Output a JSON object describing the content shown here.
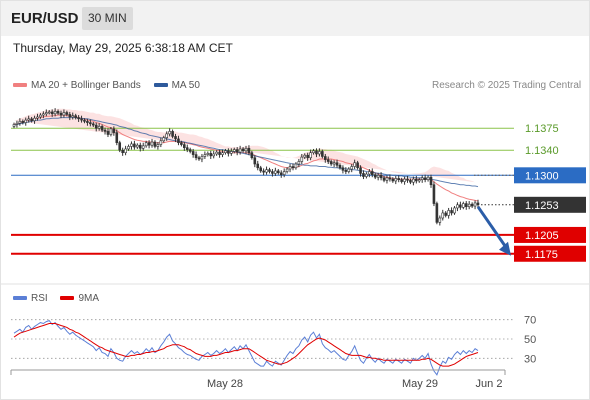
{
  "header": {
    "pair": "EUR/USD",
    "timeframe": "30 MIN",
    "datetime": "Thursday, May 29, 2025 6:38:18 AM CET"
  },
  "legend": {
    "main": [
      {
        "name": "MA 20 + Bollinger Bands",
        "color": "#f08080"
      },
      {
        "name": "MA 50",
        "color": "#2e5a9c"
      }
    ],
    "rsi": [
      {
        "name": "RSI",
        "color": "#5b7fd6"
      },
      {
        "name": "9MA",
        "color": "#e00000"
      }
    ]
  },
  "credit": "Research © 2025 Trading Central",
  "chart_data": [
    {
      "type": "candlestick",
      "ylim": [
        1.113,
        1.142
      ],
      "x_ticks": [
        "May 28",
        "May 29",
        "Jun 2"
      ],
      "current_price": "1.1253",
      "levels": [
        {
          "label": "1.1375",
          "value": 1.1375,
          "kind": "resistance",
          "color": "#8bc34a"
        },
        {
          "label": "1.1340",
          "value": 1.134,
          "kind": "resistance",
          "color": "#8bc34a"
        },
        {
          "label": "1.1300",
          "value": 1.13,
          "kind": "pivot",
          "color": "#2b6cc4"
        },
        {
          "label": "1.1205",
          "value": 1.1205,
          "kind": "support",
          "color": "#e00000"
        },
        {
          "label": "1.1175",
          "value": 1.1175,
          "kind": "support",
          "color": "#e00000"
        }
      ],
      "close": [
        1.1381,
        1.1383,
        1.1386,
        1.1384,
        1.1388,
        1.139,
        1.1387,
        1.1391,
        1.1393,
        1.1396,
        1.1398,
        1.14,
        1.1401,
        1.1398,
        1.1402,
        1.1399,
        1.1396,
        1.14,
        1.1397,
        1.1393,
        1.1395,
        1.1392,
        1.139,
        1.1388,
        1.1386,
        1.1384,
        1.1382,
        1.138,
        1.1375,
        1.1378,
        1.1372,
        1.137,
        1.1365,
        1.1374,
        1.1368,
        1.1352,
        1.134,
        1.1336,
        1.1342,
        1.1346,
        1.135,
        1.1345,
        1.1348,
        1.1343,
        1.1347,
        1.1352,
        1.1348,
        1.1353,
        1.1346,
        1.1349,
        1.1355,
        1.136,
        1.1366,
        1.137,
        1.1362,
        1.1358,
        1.1352,
        1.1349,
        1.1344,
        1.1341,
        1.1338,
        1.1333,
        1.1328,
        1.1326,
        1.133,
        1.1333,
        1.1335,
        1.1331,
        1.1334,
        1.1337,
        1.1333,
        1.1336,
        1.1339,
        1.1335,
        1.1338,
        1.1341,
        1.1337,
        1.1342,
        1.1339,
        1.1343,
        1.1336,
        1.1328,
        1.1318,
        1.1312,
        1.1307,
        1.1305,
        1.1309,
        1.1306,
        1.1303,
        1.1307,
        1.1304,
        1.1301,
        1.1306,
        1.131,
        1.1314,
        1.1312,
        1.1318,
        1.1322,
        1.1329,
        1.1332,
        1.1328,
        1.1336,
        1.1339,
        1.1334,
        1.1338,
        1.133,
        1.1325,
        1.1322,
        1.1318,
        1.132,
        1.1316,
        1.1312,
        1.1308,
        1.1306,
        1.131,
        1.1314,
        1.132,
        1.1312,
        1.1303,
        1.1298,
        1.1302,
        1.1306,
        1.1301,
        1.1297,
        1.13,
        1.1296,
        1.1292,
        1.1296,
        1.1294,
        1.1291,
        1.1295,
        1.1293,
        1.129,
        1.1294,
        1.1292,
        1.1289,
        1.1294,
        1.1291,
        1.1293,
        1.1296,
        1.1293,
        1.1297,
        1.1285,
        1.1255,
        1.1225,
        1.1232,
        1.124,
        1.1236,
        1.1244,
        1.124,
        1.1248,
        1.1253,
        1.1249,
        1.1255,
        1.125,
        1.1254,
        1.1251,
        1.1256,
        1.1253
      ],
      "ma20": [
        1.1381,
        1.1382,
        1.1384,
        1.1385,
        1.1387,
        1.1388,
        1.1389,
        1.139,
        1.1391,
        1.1392,
        1.1393,
        1.1394,
        1.1394,
        1.1395,
        1.1395,
        1.1396,
        1.1396,
        1.1396,
        1.1395,
        1.1395,
        1.1394,
        1.1393,
        1.1392,
        1.1391,
        1.139,
        1.1388,
        1.1387,
        1.1386,
        1.1384,
        1.1383,
        1.1381,
        1.1379,
        1.1377,
        1.1376,
        1.1374,
        1.1371,
        1.1368,
        1.1365,
        1.1363,
        1.1361,
        1.1359,
        1.1357,
        1.1356,
        1.1355,
        1.1354,
        1.1354,
        1.1353,
        1.1353,
        1.1352,
        1.1352,
        1.1352,
        1.1352,
        1.1353,
        1.1354,
        1.1354,
        1.1354,
        1.1353,
        1.1353,
        1.1352,
        1.1351,
        1.135,
        1.1349,
        1.1348,
        1.1346,
        1.1345,
        1.1344,
        1.1343,
        1.1342,
        1.1341,
        1.134,
        1.1339,
        1.1338,
        1.1337,
        1.1337,
        1.1336,
        1.1336,
        1.1336,
        1.1336,
        1.1336,
        1.1336,
        1.1335,
        1.1334,
        1.1332,
        1.133,
        1.1328,
        1.1326,
        1.1324,
        1.1322,
        1.132,
        1.1318,
        1.1316,
        1.1314,
        1.1313,
        1.1312,
        1.1312,
        1.1312,
        1.1313,
        1.1314,
        1.1316,
        1.1318,
        1.1319,
        1.1321,
        1.1323,
        1.1324,
        1.1326,
        1.1326,
        1.1326,
        1.1326,
        1.1326,
        1.1325,
        1.1324,
        1.1323,
        1.1322,
        1.132,
        1.1319,
        1.1318,
        1.1317,
        1.1316,
        1.1314,
        1.1312,
        1.131,
        1.1308,
        1.1306,
        1.1304,
        1.1302,
        1.13,
        1.1298,
        1.1297,
        1.1296,
        1.1295,
        1.1294,
        1.1294,
        1.1294,
        1.1294,
        1.1294,
        1.1294,
        1.1294,
        1.1294,
        1.1294,
        1.1294,
        1.1294,
        1.1294,
        1.1293,
        1.129,
        1.1286,
        1.1283,
        1.128,
        1.1277,
        1.1275,
        1.1272,
        1.127,
        1.1268,
        1.1266,
        1.1265,
        1.1263,
        1.1262,
        1.1261,
        1.126,
        1.1259
      ],
      "bb_width": [
        0.0006,
        0.0006,
        0.0007,
        0.0007,
        0.0007,
        0.0008,
        0.0008,
        0.0008,
        0.0009,
        0.0009,
        0.0009,
        0.001,
        0.001,
        0.001,
        0.001,
        0.001,
        0.001,
        0.001,
        0.001,
        0.001,
        0.001,
        0.0011,
        0.0011,
        0.0012,
        0.0012,
        0.0013,
        0.0013,
        0.0014,
        0.0014,
        0.0015,
        0.0015,
        0.0016,
        0.0017,
        0.0018,
        0.0019,
        0.0021,
        0.0023,
        0.0024,
        0.0024,
        0.0024,
        0.0024,
        0.0023,
        0.0023,
        0.0022,
        0.0022,
        0.0021,
        0.002,
        0.0019,
        0.0018,
        0.0017,
        0.0017,
        0.0016,
        0.0016,
        0.0016,
        0.0016,
        0.0016,
        0.0015,
        0.0015,
        0.0015,
        0.0015,
        0.0015,
        0.0016,
        0.0016,
        0.0016,
        0.0016,
        0.0015,
        0.0015,
        0.0014,
        0.0013,
        0.0012,
        0.0011,
        0.001,
        0.0009,
        0.0009,
        0.0009,
        0.0009,
        0.0009,
        0.0009,
        0.0009,
        0.001,
        0.0011,
        0.0013,
        0.0015,
        0.0017,
        0.0018,
        0.0019,
        0.0019,
        0.0019,
        0.0019,
        0.0018,
        0.0018,
        0.0017,
        0.0017,
        0.0016,
        0.0016,
        0.0016,
        0.0016,
        0.0017,
        0.0017,
        0.0018,
        0.0018,
        0.0018,
        0.0018,
        0.0017,
        0.0017,
        0.0016,
        0.0016,
        0.0015,
        0.0015,
        0.0014,
        0.0014,
        0.0014,
        0.0014,
        0.0014,
        0.0014,
        0.0014,
        0.0014,
        0.0014,
        0.0014,
        0.0014,
        0.0014,
        0.0014,
        0.0013,
        0.0013,
        0.0012,
        0.0012,
        0.0012,
        0.0011,
        0.0011,
        0.001,
        0.001,
        0.0009,
        0.0009,
        0.0009,
        0.0009,
        0.0009,
        0.0009,
        0.0009,
        0.0009,
        0.001,
        0.0011,
        0.0014,
        0.0019,
        0.0024,
        0.0027,
        0.0029,
        0.003,
        0.0031,
        0.0032,
        0.0032,
        0.0032,
        0.0032,
        0.0031,
        0.0031,
        0.003,
        0.003,
        0.003,
        0.0029
      ],
      "ma50": [
        1.138,
        1.1381,
        1.1382,
        1.1383,
        1.1384,
        1.1385,
        1.1386,
        1.1387,
        1.1388,
        1.1388,
        1.1389,
        1.139,
        1.139,
        1.1391,
        1.1391,
        1.1391,
        1.1392,
        1.1392,
        1.1392,
        1.1392,
        1.1392,
        1.1392,
        1.1391,
        1.1391,
        1.139,
        1.139,
        1.1389,
        1.1388,
        1.1387,
        1.1386,
        1.1385,
        1.1384,
        1.1383,
        1.1382,
        1.1381,
        1.138,
        1.1378,
        1.1377,
        1.1376,
        1.1374,
        1.1373,
        1.1371,
        1.137,
        1.1368,
        1.1367,
        1.1366,
        1.1364,
        1.1363,
        1.1362,
        1.1361,
        1.136,
        1.1359,
        1.1358,
        1.1357,
        1.1356,
        1.1355,
        1.1354,
        1.1354,
        1.1353,
        1.1352,
        1.1351,
        1.135,
        1.1349,
        1.1348,
        1.1347,
        1.1346,
        1.1345,
        1.1344,
        1.1343,
        1.1342,
        1.1341,
        1.1341,
        1.134,
        1.1339,
        1.1338,
        1.1338,
        1.1337,
        1.1336,
        1.1335,
        1.1334,
        1.1333,
        1.1332,
        1.1331,
        1.133,
        1.1329,
        1.1328,
        1.1327,
        1.1326,
        1.1325,
        1.1324,
        1.1323,
        1.1322,
        1.1321,
        1.132,
        1.1319,
        1.1318,
        1.1318,
        1.1317,
        1.1317,
        1.1316,
        1.1316,
        1.1315,
        1.1315,
        1.1315,
        1.1314,
        1.1314,
        1.1314,
        1.1313,
        1.1313,
        1.1312,
        1.1312,
        1.1311,
        1.1311,
        1.131,
        1.131,
        1.1309,
        1.1309,
        1.1308,
        1.1307,
        1.1307,
        1.1306,
        1.1305,
        1.1305,
        1.1304,
        1.1303,
        1.1303,
        1.1302,
        1.1301,
        1.1301,
        1.13,
        1.13,
        1.1299,
        1.1299,
        1.1298,
        1.1298,
        1.1297,
        1.1297,
        1.1296,
        1.1296,
        1.1296,
        1.1295,
        1.1295,
        1.1294,
        1.1293,
        1.1292,
        1.1291,
        1.129,
        1.1289,
        1.1288,
        1.1287,
        1.1287,
        1.1286,
        1.1285,
        1.1285,
        1.1284,
        1.1284,
        1.1283,
        1.1283,
        1.1282,
        1.1282
      ]
    },
    {
      "type": "line",
      "ylim": [
        20,
        80
      ],
      "y_ticks": [
        30,
        50,
        70
      ],
      "rsi": [
        56,
        58,
        60,
        57,
        62,
        64,
        60,
        63,
        65,
        67,
        66,
        68,
        69,
        65,
        67,
        63,
        60,
        62,
        58,
        55,
        57,
        54,
        52,
        50,
        48,
        46,
        44,
        42,
        38,
        41,
        36,
        35,
        32,
        40,
        36,
        30,
        28,
        27,
        32,
        35,
        38,
        35,
        37,
        34,
        36,
        40,
        37,
        41,
        36,
        38,
        43,
        47,
        52,
        55,
        48,
        45,
        41,
        39,
        36,
        34,
        33,
        31,
        29,
        28,
        32,
        34,
        36,
        33,
        35,
        38,
        35,
        37,
        40,
        36,
        39,
        42,
        38,
        43,
        40,
        44,
        38,
        32,
        26,
        24,
        22,
        22,
        27,
        24,
        22,
        27,
        25,
        23,
        28,
        33,
        37,
        35,
        40,
        43,
        49,
        52,
        47,
        54,
        57,
        51,
        55,
        45,
        41,
        39,
        36,
        38,
        35,
        32,
        29,
        28,
        33,
        37,
        43,
        35,
        28,
        25,
        30,
        34,
        29,
        26,
        30,
        27,
        25,
        29,
        27,
        25,
        29,
        27,
        25,
        29,
        27,
        25,
        30,
        28,
        30,
        33,
        30,
        35,
        24,
        17,
        13,
        21,
        27,
        25,
        31,
        29,
        34,
        37,
        34,
        38,
        35,
        38,
        36,
        40,
        38
      ],
      "ma9": [
        52,
        54,
        56,
        57,
        58,
        59,
        60,
        61,
        62,
        63,
        64,
        65,
        66,
        66,
        66,
        65,
        64,
        63,
        62,
        60,
        59,
        57,
        56,
        54,
        52,
        50,
        48,
        46,
        44,
        42,
        41,
        39,
        38,
        37,
        36,
        35,
        34,
        33,
        32,
        32,
        33,
        33,
        34,
        34,
        35,
        36,
        36,
        37,
        37,
        38,
        39,
        40,
        42,
        43,
        44,
        44,
        44,
        43,
        42,
        40,
        39,
        37,
        35,
        34,
        33,
        32,
        32,
        32,
        33,
        33,
        34,
        35,
        36,
        36,
        37,
        38,
        38,
        39,
        40,
        40,
        40,
        38,
        36,
        34,
        32,
        30,
        28,
        27,
        26,
        25,
        24,
        24,
        25,
        26,
        28,
        30,
        32,
        35,
        38,
        41,
        44,
        46,
        48,
        50,
        51,
        50,
        49,
        47,
        45,
        43,
        41,
        39,
        37,
        35,
        34,
        33,
        33,
        33,
        33,
        32,
        31,
        31,
        30,
        30,
        29,
        29,
        28,
        28,
        28,
        28,
        28,
        28,
        28,
        28,
        28,
        28,
        28,
        28,
        28,
        29,
        29,
        30,
        29,
        27,
        25,
        23,
        22,
        22,
        22,
        23,
        24,
        26,
        28,
        30,
        32,
        33,
        34,
        35,
        36
      ]
    }
  ]
}
